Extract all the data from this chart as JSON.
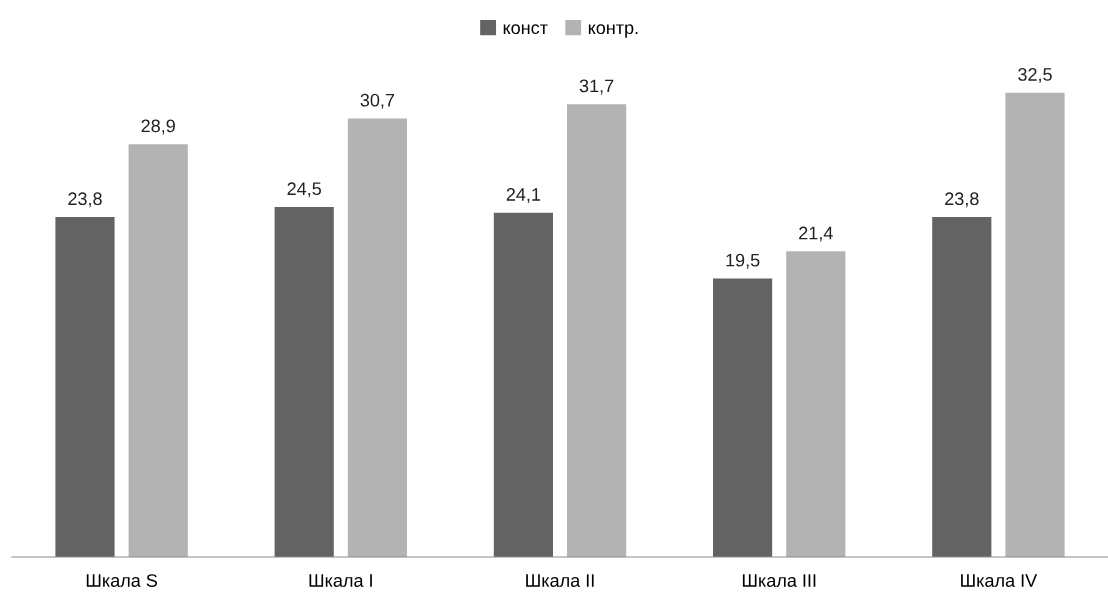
{
  "chart_data": {
    "type": "bar",
    "categories": [
      "Шкала S",
      "Шкала I",
      "Шкала II",
      "Шкала III",
      "Шкала IV"
    ],
    "series": [
      {
        "name": "конст",
        "color": "#636363",
        "values": [
          23.8,
          24.5,
          24.1,
          19.5,
          23.8
        ],
        "value_labels": [
          "23,8",
          "24,5",
          "24,1",
          "19,5",
          "23,8"
        ]
      },
      {
        "name": "контр.",
        "color": "#b3b3b3",
        "values": [
          28.9,
          30.7,
          31.7,
          21.4,
          32.5
        ],
        "value_labels": [
          "28,9",
          "30,7",
          "31,7",
          "21,4",
          "32,5"
        ]
      }
    ],
    "legend": "top",
    "tick_labels": "x"
  }
}
